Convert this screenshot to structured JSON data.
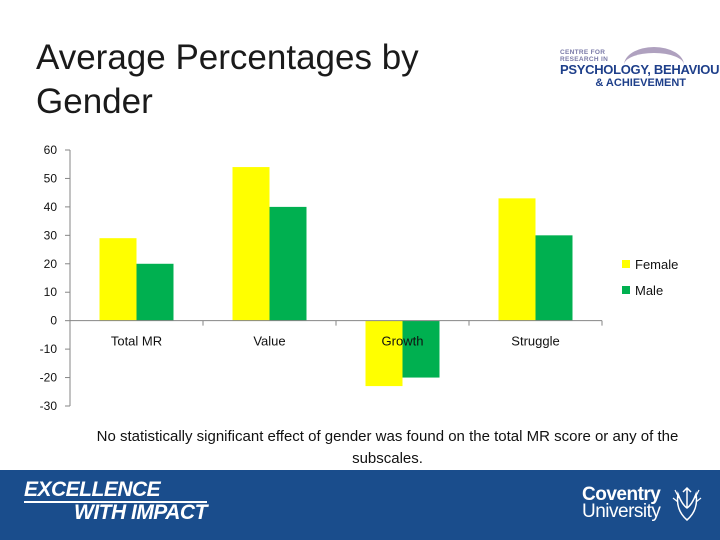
{
  "title": "Average Percentages by Gender",
  "logo": {
    "line1": "CENTRE FOR",
    "line1b": "RESEARCH IN",
    "line2": "PSYCHOLOGY, BEHAVIOUR",
    "line3": "& ACHIEVEMENT"
  },
  "caption": "No statistically significant effect of gender was found on the total MR score or any of the subscales.",
  "footer": {
    "slogan_line1": "EXCELLENCE",
    "slogan_line2": "WITH IMPACT",
    "university_line1": "Coventry",
    "university_line2": "University"
  },
  "colors": {
    "female": "#ffff00",
    "male": "#00b050",
    "axis": "#868686",
    "text": "#111111"
  },
  "chart_data": {
    "type": "bar",
    "title": "",
    "xlabel": "",
    "ylabel": "",
    "categories": [
      "Total MR",
      "Value",
      "Growth",
      "Struggle"
    ],
    "series": [
      {
        "name": "Female",
        "values": [
          29,
          54,
          -23,
          43
        ]
      },
      {
        "name": "Male",
        "values": [
          20,
          40,
          -20,
          30
        ]
      }
    ],
    "ylim": [
      -30,
      60
    ],
    "yticks": [
      -30,
      -20,
      -10,
      0,
      10,
      20,
      30,
      40,
      50,
      60
    ],
    "legend": "right",
    "grid": false
  }
}
